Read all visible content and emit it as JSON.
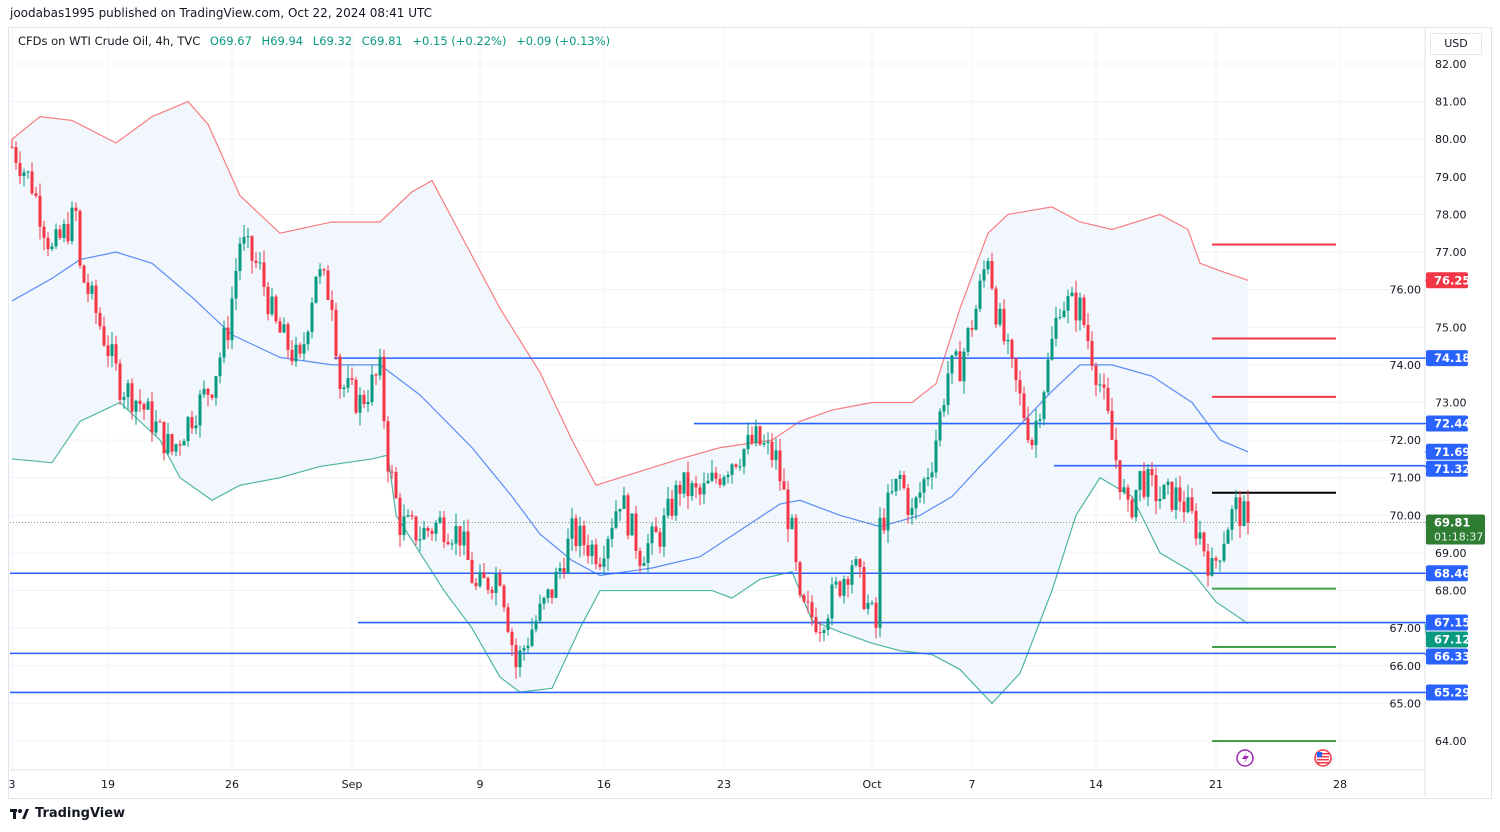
{
  "publish_note": "joodabas1995 published on TradingView.com, Oct 22, 2024 08:41 UTC",
  "legend": {
    "symbol": "CFDs on WTI Crude Oil, 4h, TVC",
    "open": "O69.67",
    "high": "H69.94",
    "low": "L69.32",
    "close": "C69.81",
    "change": "+0.15 (+0.22%)",
    "change2": "+0.09 (+0.13%)"
  },
  "currency": "USD",
  "footer": {
    "brand": "TradingView"
  },
  "colors": {
    "up": "#089981",
    "down": "#f23645",
    "blue": "#2962ff",
    "upper": "#f77c80",
    "middle": "#5b8cf5",
    "lower": "#4fb6a0",
    "fill": "#eef5fd",
    "last": "#2e7d32"
  },
  "chart_data": {
    "type": "candlestick",
    "title": "CFDs on WTI Crude Oil, 4h, TVC",
    "ylim": [
      63.5,
      82.6
    ],
    "y_ticks": [
      "82.00",
      "81.00",
      "80.00",
      "79.00",
      "78.00",
      "77.00",
      "76.00",
      "75.00",
      "74.00",
      "73.00",
      "72.00",
      "71.00",
      "70.00",
      "69.00",
      "68.00",
      "67.00",
      "66.00",
      "65.00",
      "64.00"
    ],
    "x_ticks": [
      {
        "label": "3",
        "bar": 0
      },
      {
        "label": "19",
        "bar": 24
      },
      {
        "label": "26",
        "bar": 55
      },
      {
        "label": "Sep",
        "bar": 85
      },
      {
        "label": "9",
        "bar": 117
      },
      {
        "label": "16",
        "bar": 148
      },
      {
        "label": "23",
        "bar": 178
      },
      {
        "label": "Oct",
        "bar": 215
      },
      {
        "label": "7",
        "bar": 240
      },
      {
        "label": "14",
        "bar": 271
      },
      {
        "label": "21",
        "bar": 301
      },
      {
        "label": "28",
        "bar": 332
      }
    ],
    "close_path": [
      [
        0,
        79.8
      ],
      [
        5,
        78.8
      ],
      [
        10,
        77.0
      ],
      [
        16,
        78.0
      ],
      [
        17,
        76.5
      ],
      [
        20,
        75.7
      ],
      [
        27,
        73.5
      ],
      [
        32,
        73.0
      ],
      [
        40,
        71.7
      ],
      [
        44,
        72.5
      ],
      [
        50,
        73.5
      ],
      [
        54,
        75.0
      ],
      [
        57,
        77.3
      ],
      [
        62,
        76.5
      ],
      [
        66,
        75.0
      ],
      [
        72,
        74.0
      ],
      [
        76,
        76.5
      ],
      [
        80,
        75.8
      ],
      [
        82,
        73.5
      ],
      [
        87,
        73.0
      ],
      [
        92,
        73.8
      ],
      [
        94,
        71.5
      ],
      [
        97,
        69.8
      ],
      [
        102,
        69.5
      ],
      [
        107,
        69.8
      ],
      [
        112,
        69.5
      ],
      [
        116,
        68.0
      ],
      [
        122,
        68.5
      ],
      [
        126,
        66.0
      ],
      [
        130,
        67.0
      ],
      [
        135,
        68.0
      ],
      [
        140,
        69.5
      ],
      [
        147,
        69.0
      ],
      [
        152,
        70.5
      ],
      [
        157,
        69.0
      ],
      [
        162,
        69.5
      ],
      [
        167,
        70.8
      ],
      [
        172,
        70.5
      ],
      [
        180,
        71.5
      ],
      [
        186,
        72.0
      ],
      [
        191,
        71.5
      ],
      [
        195,
        69.5
      ],
      [
        197,
        67.5
      ],
      [
        202,
        67.2
      ],
      [
        210,
        68.8
      ],
      [
        216,
        67.0
      ],
      [
        217,
        69.7
      ],
      [
        222,
        71.0
      ],
      [
        225,
        70.0
      ],
      [
        230,
        71.5
      ],
      [
        234,
        73.8
      ],
      [
        237,
        74.0
      ],
      [
        241,
        75.5
      ],
      [
        244,
        77.0
      ],
      [
        246,
        75.5
      ],
      [
        250,
        73.8
      ],
      [
        255,
        72.0
      ],
      [
        259,
        74.0
      ],
      [
        262,
        75.7
      ],
      [
        267,
        75.5
      ],
      [
        272,
        73.5
      ],
      [
        275,
        72.0
      ],
      [
        279,
        70.0
      ],
      [
        282,
        71.0
      ],
      [
        287,
        70.5
      ],
      [
        292,
        70.5
      ],
      [
        297,
        69.5
      ],
      [
        300,
        68.5
      ],
      [
        304,
        69.8
      ],
      [
        306,
        70.2
      ],
      [
        309,
        69.81
      ]
    ],
    "bollinger": {
      "upper": [
        [
          0,
          80.0
        ],
        [
          7,
          80.6
        ],
        [
          15,
          80.5
        ],
        [
          26,
          79.9
        ],
        [
          35,
          80.6
        ],
        [
          44,
          81.0
        ],
        [
          49,
          80.4
        ],
        [
          57,
          78.5
        ],
        [
          67,
          77.5
        ],
        [
          80,
          77.8
        ],
        [
          92,
          77.8
        ],
        [
          100,
          78.6
        ],
        [
          105,
          78.9
        ],
        [
          112,
          77.5
        ],
        [
          122,
          75.5
        ],
        [
          132,
          73.8
        ],
        [
          140,
          72.0
        ],
        [
          146,
          70.8
        ],
        [
          152,
          71.0
        ],
        [
          167,
          71.5
        ],
        [
          177,
          71.8
        ],
        [
          190,
          72.0
        ],
        [
          197,
          72.5
        ],
        [
          205,
          72.8
        ],
        [
          215,
          73.0
        ],
        [
          225,
          73.0
        ],
        [
          231,
          73.5
        ],
        [
          237,
          75.5
        ],
        [
          244,
          77.5
        ],
        [
          249,
          78.0
        ],
        [
          260,
          78.2
        ],
        [
          267,
          77.8
        ],
        [
          275,
          77.6
        ],
        [
          287,
          78.0
        ],
        [
          294,
          77.6
        ],
        [
          297,
          76.7
        ],
        [
          302,
          76.5
        ],
        [
          309,
          76.25
        ]
      ],
      "middle": [
        [
          0,
          75.7
        ],
        [
          10,
          76.3
        ],
        [
          17,
          76.8
        ],
        [
          26,
          77.0
        ],
        [
          35,
          76.7
        ],
        [
          45,
          75.8
        ],
        [
          55,
          74.8
        ],
        [
          67,
          74.2
        ],
        [
          80,
          74.0
        ],
        [
          92,
          74.0
        ],
        [
          102,
          73.2
        ],
        [
          115,
          71.8
        ],
        [
          125,
          70.5
        ],
        [
          132,
          69.5
        ],
        [
          140,
          68.8
        ],
        [
          147,
          68.4
        ],
        [
          160,
          68.6
        ],
        [
          172,
          68.9
        ],
        [
          182,
          69.6
        ],
        [
          192,
          70.3
        ],
        [
          197,
          70.4
        ],
        [
          207,
          70.0
        ],
        [
          217,
          69.7
        ],
        [
          227,
          70.0
        ],
        [
          235,
          70.5
        ],
        [
          242,
          71.3
        ],
        [
          252,
          72.4
        ],
        [
          260,
          73.3
        ],
        [
          267,
          74.0
        ],
        [
          275,
          74.0
        ],
        [
          285,
          73.7
        ],
        [
          295,
          73.0
        ],
        [
          302,
          72.0
        ],
        [
          309,
          71.69
        ]
      ],
      "lower": [
        [
          0,
          71.5
        ],
        [
          10,
          71.4
        ],
        [
          17,
          72.5
        ],
        [
          27,
          73.0
        ],
        [
          37,
          72.0
        ],
        [
          42,
          71.0
        ],
        [
          50,
          70.4
        ],
        [
          57,
          70.8
        ],
        [
          67,
          71.0
        ],
        [
          77,
          71.3
        ],
        [
          90,
          71.5
        ],
        [
          94,
          71.6
        ],
        [
          96,
          70.0
        ],
        [
          102,
          69.0
        ],
        [
          108,
          68.0
        ],
        [
          115,
          67.0
        ],
        [
          122,
          65.7
        ],
        [
          127,
          65.3
        ],
        [
          135,
          65.4
        ],
        [
          142,
          67.0
        ],
        [
          147,
          68.0
        ],
        [
          160,
          68.0
        ],
        [
          175,
          68.0
        ],
        [
          180,
          67.8
        ],
        [
          187,
          68.3
        ],
        [
          195,
          68.5
        ],
        [
          200,
          67.2
        ],
        [
          207,
          66.9
        ],
        [
          215,
          66.6
        ],
        [
          222,
          66.4
        ],
        [
          230,
          66.3
        ],
        [
          237,
          65.9
        ],
        [
          245,
          65.0
        ],
        [
          252,
          65.8
        ],
        [
          260,
          68.0
        ],
        [
          266,
          70.0
        ],
        [
          272,
          71.0
        ],
        [
          280,
          70.5
        ],
        [
          287,
          69.0
        ],
        [
          295,
          68.5
        ],
        [
          301,
          67.7
        ],
        [
          309,
          67.12
        ]
      ]
    },
    "levels": [
      {
        "price": 74.18,
        "label": "74.18",
        "from_bar": 81,
        "color": "blue"
      },
      {
        "price": 72.44,
        "label": "72.44",
        "from_bar": 171,
        "color": "blue"
      },
      {
        "price": 71.32,
        "label": "71.32",
        "from_bar": 261,
        "color": "blue"
      },
      {
        "price": 68.46,
        "label": "68.46",
        "from_bar": 0,
        "color": "blue"
      },
      {
        "price": 67.15,
        "label": "67.15",
        "from_bar": 87,
        "color": "blue"
      },
      {
        "price": 66.33,
        "label": "66.33",
        "from_bar": 0,
        "color": "blue"
      },
      {
        "price": 65.29,
        "label": "65.29",
        "from_bar": 0,
        "color": "blue"
      }
    ],
    "targets": [
      {
        "price": 77.2,
        "color": "#f23645"
      },
      {
        "price": 74.7,
        "color": "#f23645"
      },
      {
        "price": 73.15,
        "color": "#f23645"
      },
      {
        "price": 70.6,
        "color": "#000000"
      },
      {
        "price": 68.05,
        "color": "#43a047"
      },
      {
        "price": 66.5,
        "color": "#43a047"
      },
      {
        "price": 64.0,
        "color": "#43a047"
      }
    ],
    "target_span_bars": [
      300,
      331
    ],
    "price_labels": [
      {
        "price": 76.25,
        "label": "76.25",
        "color": "#f23645"
      },
      {
        "price": 71.69,
        "label": "71.69",
        "color": "#2962ff"
      },
      {
        "price": 67.12,
        "label": "67.12",
        "color": "#089981"
      }
    ],
    "last_price": {
      "price": 69.81,
      "label": "69.81",
      "countdown": "01:18:37"
    }
  }
}
